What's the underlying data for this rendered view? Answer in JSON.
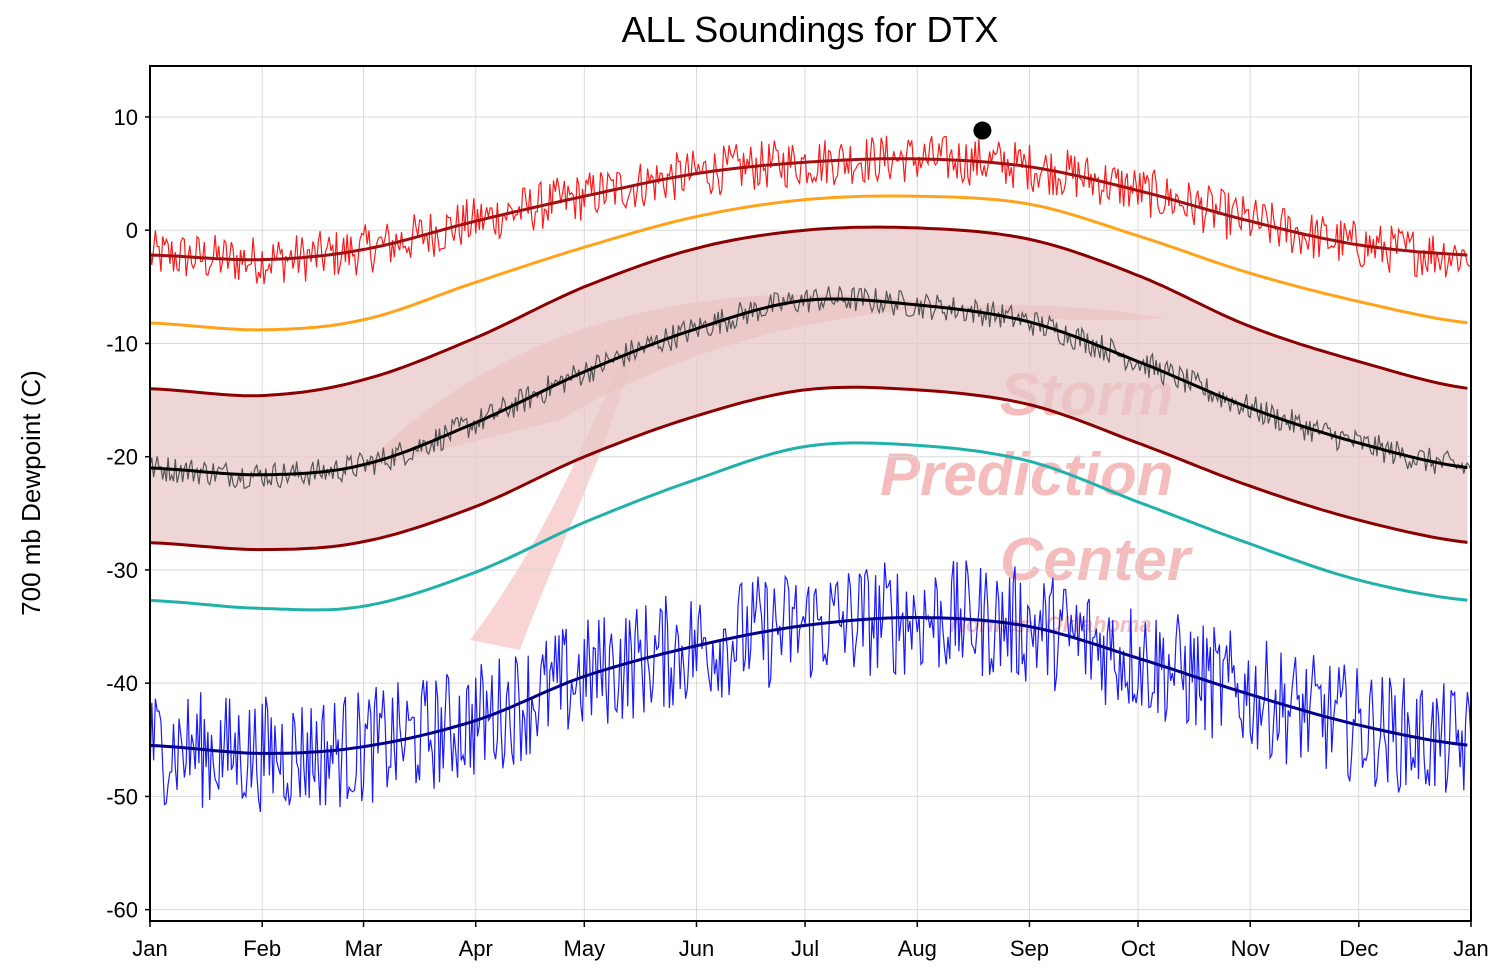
{
  "chart_data": {
    "type": "line",
    "title": "ALL Soundings for DTX",
    "ylabel": "700 mb Dewpoint (C)",
    "xlabel": "",
    "ylim": [
      -61,
      14.5
    ],
    "yticks": [
      10,
      0,
      -10,
      -20,
      -30,
      -40,
      -50,
      -60
    ],
    "xticks": [
      "Jan",
      "Feb",
      "Mar",
      "Apr",
      "May",
      "Jun",
      "Jul",
      "Aug",
      "Sep",
      "Oct",
      "Nov",
      "Dec",
      "Jan"
    ],
    "grid": true,
    "watermark": {
      "lines": [
        "Storm",
        "Prediction",
        "Center",
        "Norman, Oklahoma"
      ]
    },
    "month_positions": [
      0,
      31,
      59,
      90,
      120,
      151,
      181,
      212,
      243,
      273,
      304,
      334,
      365
    ],
    "smooth_curves": {
      "record_max_mean": [
        -2.2,
        -2.6,
        -1.7,
        0.8,
        3.0,
        5.0,
        6.0,
        6.3,
        5.6,
        3.5,
        0.8,
        -1.3,
        -2.2
      ],
      "p90": [
        -8.2,
        -8.8,
        -7.9,
        -4.6,
        -1.5,
        1.2,
        2.7,
        3.0,
        2.3,
        -0.5,
        -3.8,
        -6.3,
        -8.2
      ],
      "p75": [
        -14.0,
        -14.6,
        -13.2,
        -9.5,
        -5.0,
        -1.6,
        0.0,
        0.2,
        -0.8,
        -4.0,
        -8.5,
        -11.6,
        -14.0
      ],
      "mean": [
        -21.0,
        -21.6,
        -20.7,
        -17.0,
        -12.5,
        -8.7,
        -6.2,
        -6.6,
        -8.1,
        -11.6,
        -15.7,
        -18.8,
        -21.0
      ],
      "p25": [
        -27.6,
        -28.2,
        -27.5,
        -24.4,
        -20.0,
        -16.4,
        -14.1,
        -14.1,
        -15.4,
        -18.8,
        -22.6,
        -25.6,
        -27.6
      ],
      "p10": [
        -32.7,
        -33.4,
        -33.2,
        -30.2,
        -25.8,
        -22.0,
        -19.1,
        -19.0,
        -20.4,
        -24.0,
        -27.7,
        -30.9,
        -32.7
      ],
      "record_min_mean": [
        -45.5,
        -46.2,
        -45.6,
        -43.3,
        -39.4,
        -36.7,
        -34.9,
        -34.2,
        -35.0,
        -37.8,
        -41.0,
        -43.7,
        -45.5
      ]
    },
    "series": [
      {
        "key": "daily_max",
        "color": "#ff1a1a",
        "noise": 2.2,
        "ref": "record_max_mean"
      },
      {
        "key": "daily_mean",
        "color": "#555555",
        "noise": 1.2,
        "ref": "mean"
      },
      {
        "key": "daily_min",
        "color": "#1a1aff",
        "noise": 5.2,
        "ref": "record_min_mean"
      }
    ],
    "current_point": {
      "day": 230,
      "value": 8.8
    },
    "colors": {
      "band_fill": "#e8c8c8",
      "band_edge": "#8b0000",
      "p90": "#ffa31a",
      "p10": "#20b2aa",
      "record_max_mean": "#a01010",
      "mean": "#000000",
      "record_min_mean": "#00008b",
      "watermark": "#f0a0a0"
    }
  }
}
